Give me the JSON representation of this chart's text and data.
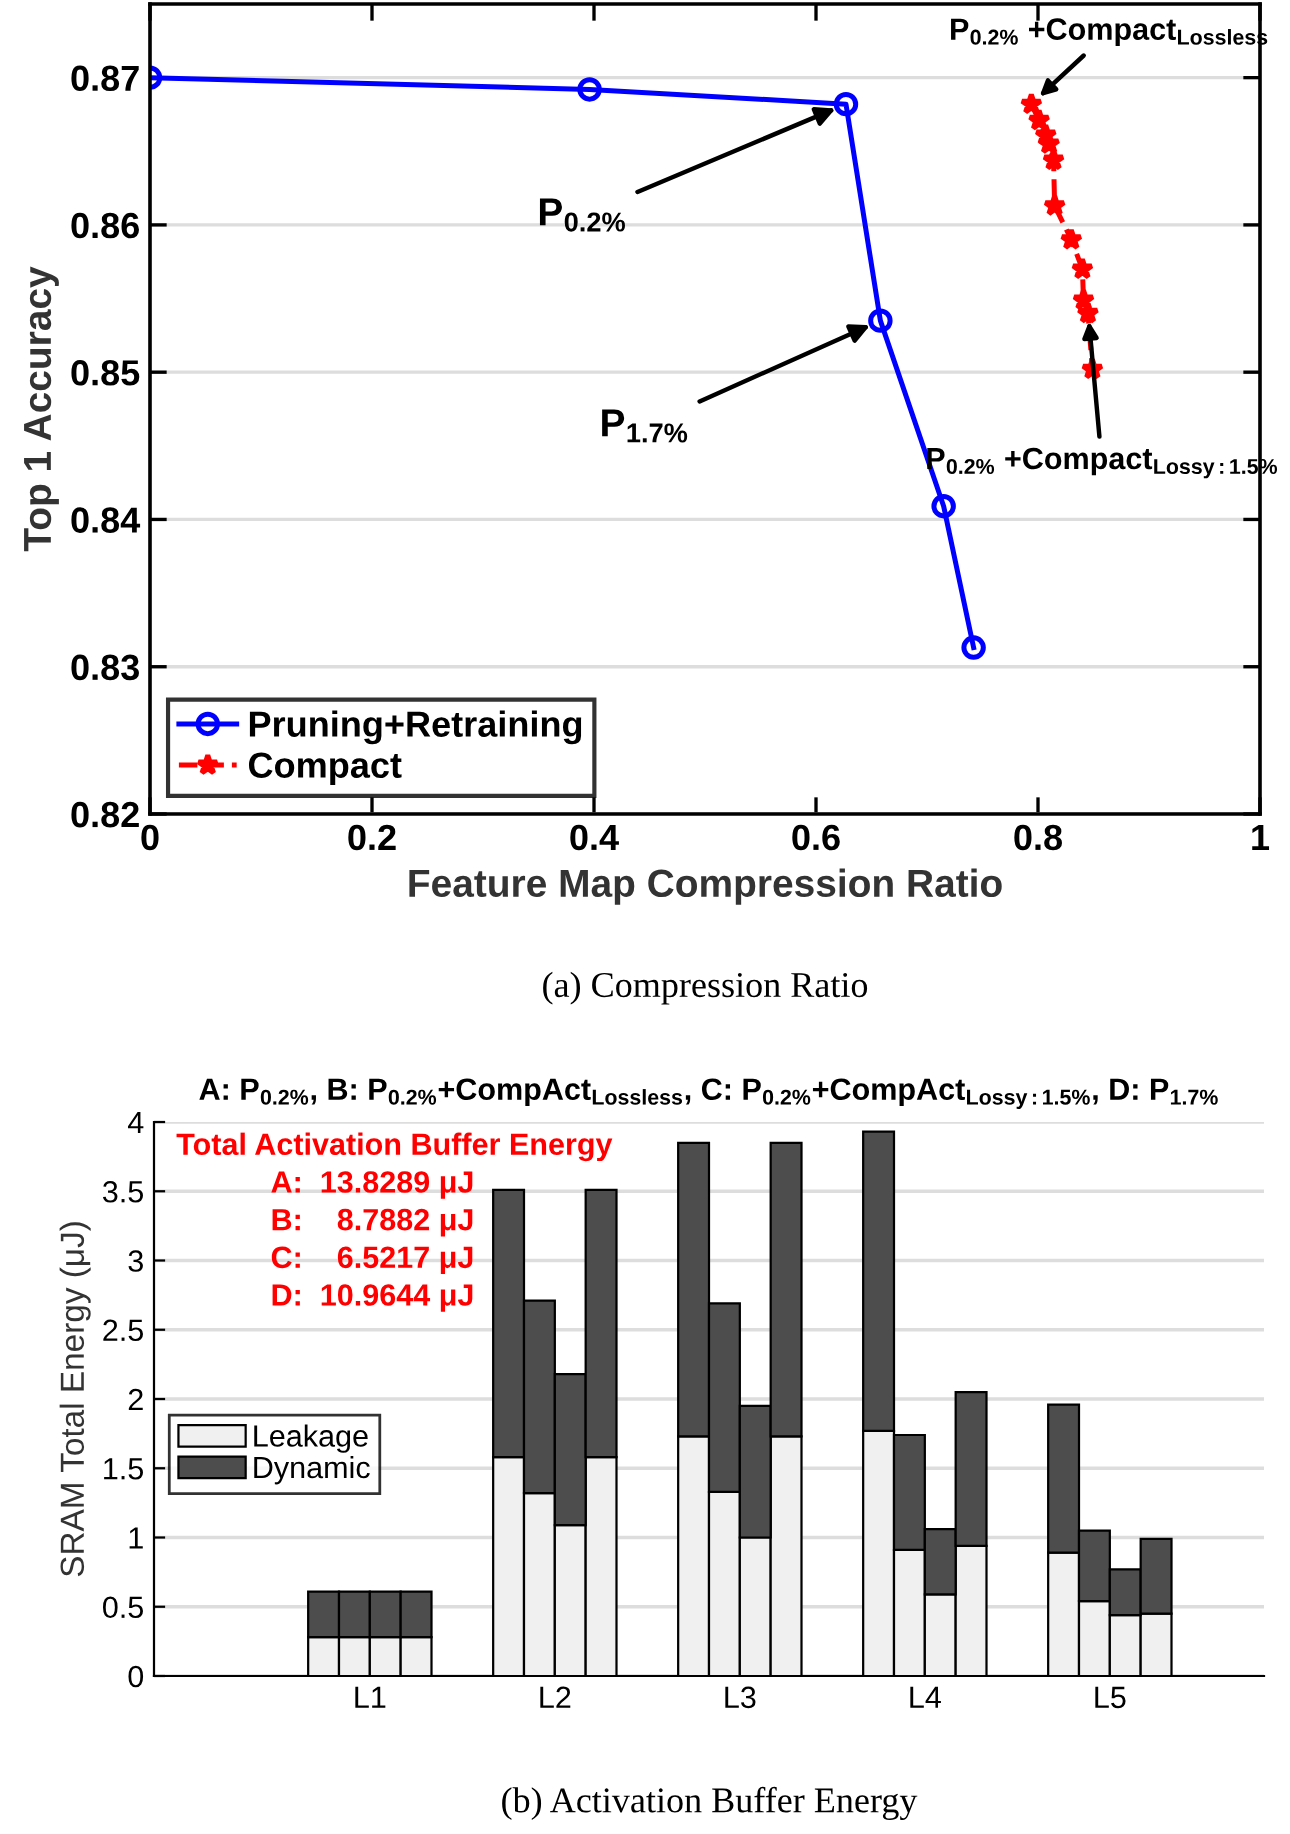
{
  "chart_data": [
    {
      "type": "line",
      "xlabel": "Feature Map Compression Ratio",
      "ylabel": "Top 1 Accuracy",
      "xlim": [
        0,
        1
      ],
      "ylim": [
        0.82,
        0.875
      ],
      "xticks": [
        0,
        0.2,
        0.4,
        0.6,
        0.8,
        1
      ],
      "yticks": [
        0.82,
        0.83,
        0.84,
        0.85,
        0.86,
        0.87
      ],
      "grid": "y",
      "legend": "bottom left",
      "series": [
        {
          "name": "Pruning+Retraining",
          "color": "#0000ff",
          "marker": "circle",
          "line_style": "solid",
          "x": [
            0,
            0.396,
            0.627,
            0.658,
            0.715,
            0.742
          ],
          "values": [
            0.87,
            0.8692,
            0.8682,
            0.8535,
            0.8409,
            0.8313
          ]
        },
        {
          "name": "Compact",
          "color": "#ff0000",
          "marker": "star",
          "line_style": "dashed",
          "x": [
            0.794,
            0.801,
            0.807,
            0.81,
            0.814,
            0.815,
            0.83,
            0.84,
            0.841,
            0.845,
            0.849
          ],
          "values": [
            0.8682,
            0.8671,
            0.8661,
            0.8655,
            0.8644,
            0.8613,
            0.859,
            0.857,
            0.8549,
            0.854,
            0.8502
          ]
        }
      ],
      "annotations": [
        {
          "text": "P$_{0.2%}$",
          "x": 0.627,
          "y": 0.8682
        },
        {
          "text": "P$_{1.7%}$",
          "x": 0.658,
          "y": 0.8535
        },
        {
          "text": "P$_{0.2%}$ +Compact$_{Lossless}$",
          "x": 0.794,
          "y": 0.8682
        },
        {
          "text": "P$_{0.2%}$ +Compact$_{Lossy:1.5%}$",
          "x": 0.845,
          "y": 0.8542
        },
        "(a) Compression Ratio"
      ]
    },
    {
      "type": "bar",
      "stacked": true,
      "title": "A: P$_{0.2%}$, B: P$_{0.2%}$+CompAct$_{Lossless}$, C: P$_{0.2%}$+CompAct$_{Lossy:1.5%}$, D: P$_{1.7%}$",
      "ylabel": "SRAM Total Energy (μJ)",
      "ylim": [
        0,
        4
      ],
      "yticks": [
        0,
        0.5,
        1,
        1.5,
        2,
        2.5,
        3,
        3.5,
        4
      ],
      "categories": [
        null,
        null,
        null,
        null,
        null,
        null,
        "L1",
        null,
        null,
        null,
        null,
        null,
        "L2",
        null,
        null,
        null,
        null,
        null,
        "L3",
        null,
        null,
        null,
        null,
        null,
        "L4",
        null,
        null,
        null,
        null,
        null,
        "L5",
        null,
        null,
        null,
        null,
        null
      ],
      "grid": "y",
      "legend": "left",
      "series": [
        {
          "name": "Leakage",
          "color": "#f0f0f0",
          "values": [
            null,
            null,
            null,
            null,
            null,
            0.28,
            0.28,
            0.28,
            0.28,
            null,
            null,
            1.58,
            1.32,
            1.09,
            1.58,
            null,
            null,
            1.73,
            1.33,
            1.0,
            1.73,
            null,
            null,
            1.77,
            0.91,
            0.59,
            0.94,
            null,
            null,
            0.89,
            0.54,
            0.44,
            0.45,
            null,
            null,
            null
          ]
        },
        {
          "name": "Dynamic",
          "color": "#4d4d4d",
          "values": [
            null,
            null,
            null,
            null,
            null,
            0.33,
            0.33,
            0.33,
            0.33,
            null,
            null,
            1.93,
            1.39,
            1.09,
            1.93,
            null,
            null,
            2.12,
            1.36,
            0.95,
            2.12,
            null,
            null,
            2.16,
            0.83,
            0.47,
            1.11,
            null,
            null,
            1.07,
            0.51,
            0.33,
            0.54,
            null,
            null,
            null
          ]
        }
      ],
      "annotations": [
        "Total Activation Buffer Energy",
        "A:  13.8289 μJ",
        "B:    8.7882 μJ",
        "C:    6.5217 μJ",
        "D:  10.9644 μJ",
        "(b) Activation Buffer Energy"
      ]
    }
  ]
}
